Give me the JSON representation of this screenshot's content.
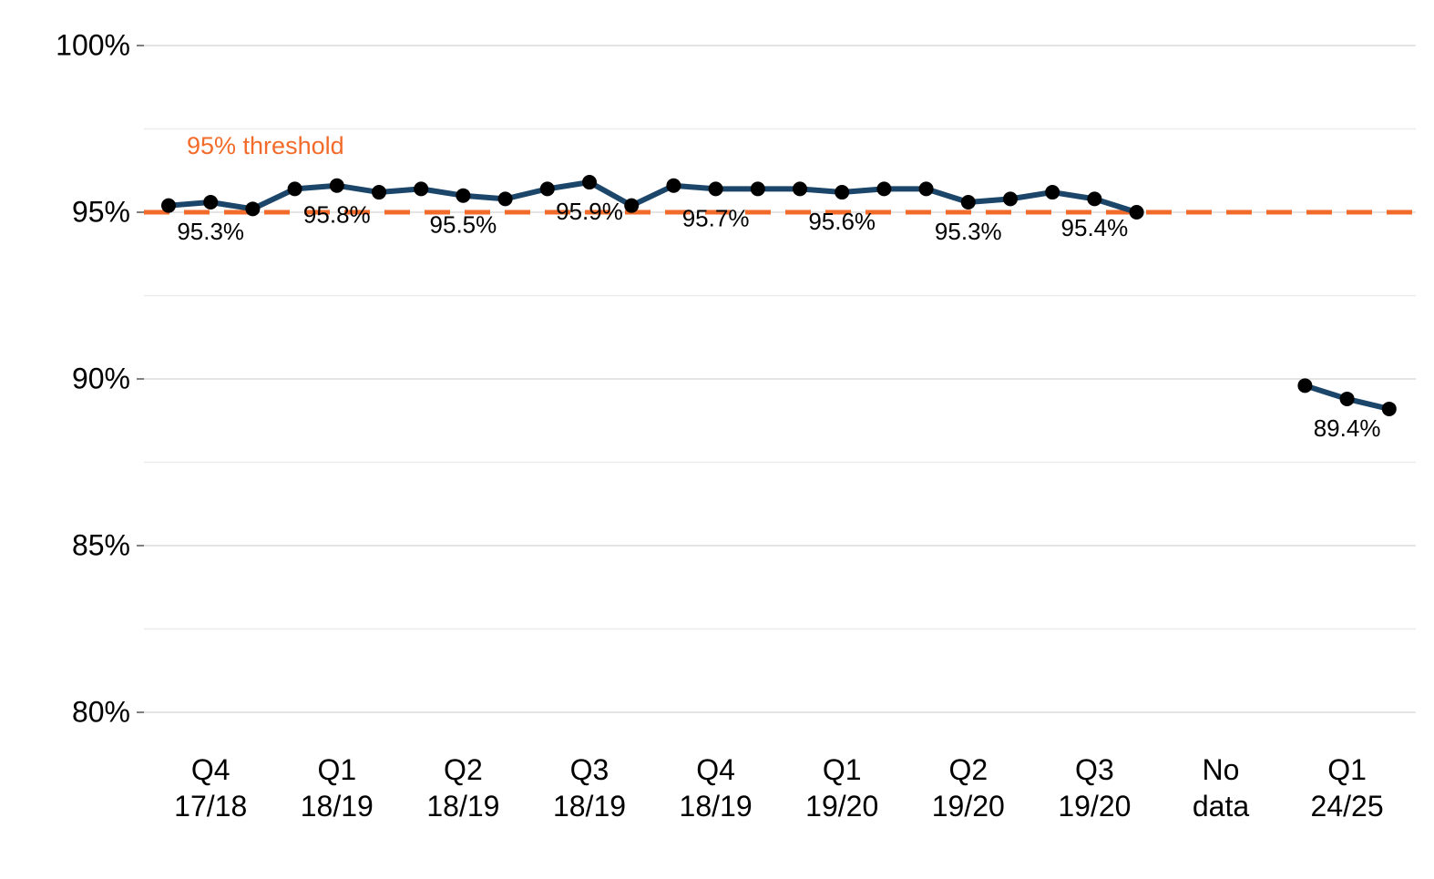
{
  "chart_data": {
    "type": "line",
    "categories": [
      null,
      "Q4\n17/18",
      null,
      null,
      "Q1\n18/19",
      null,
      null,
      "Q2\n18/19",
      null,
      null,
      "Q3\n18/19",
      null,
      null,
      "Q4\n18/19",
      null,
      null,
      "Q1\n19/20",
      null,
      null,
      "Q2\n19/20",
      null,
      null,
      "Q3\n19/20",
      null,
      null,
      "No\ndata",
      null,
      null,
      "Q1\n24/25",
      null
    ],
    "series": [
      {
        "color": "#1b4569",
        "values": [
          95.2,
          95.3,
          95.1,
          95.7,
          95.8,
          95.6,
          95.7,
          95.5,
          95.4,
          95.7,
          95.9,
          95.2,
          95.8,
          95.7,
          95.7,
          95.7,
          95.6,
          95.7,
          95.7,
          95.3,
          95.4,
          95.6,
          95.4,
          95.0,
          null,
          null,
          null,
          89.8,
          89.4,
          89.1
        ],
        "value_labels": [
          null,
          "95.3%",
          null,
          null,
          "95.8%",
          null,
          null,
          "95.5%",
          null,
          null,
          "95.9%",
          null,
          null,
          "95.7%",
          null,
          null,
          "95.6%",
          null,
          null,
          "95.3%",
          null,
          null,
          "95.4%",
          null,
          null,
          null,
          null,
          null,
          "89.4%",
          null
        ]
      }
    ],
    "ylim": [
      80,
      100
    ],
    "yticks": [
      {
        "value": 80,
        "label": "80%"
      },
      {
        "value": 85,
        "label": "85%"
      },
      {
        "value": 90,
        "label": "90%"
      },
      {
        "value": 95,
        "label": "95%"
      },
      {
        "value": 100,
        "label": "100%"
      }
    ],
    "minor_grid": [
      82.5,
      87.5,
      92.5,
      97.5
    ],
    "grid": true,
    "threshold": {
      "value": 95,
      "label": "95% threshold",
      "color": "#f26b2a"
    }
  }
}
